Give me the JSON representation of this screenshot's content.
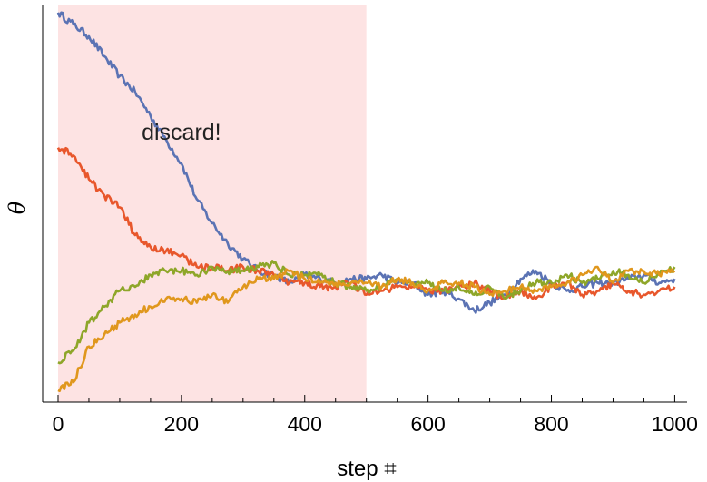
{
  "chart_data": {
    "type": "line",
    "title": "",
    "xlabel": "step ⌗",
    "ylabel": "θ",
    "xlim": [
      -25,
      1020
    ],
    "ylim": [
      0,
      1
    ],
    "xticks": [
      0,
      200,
      400,
      600,
      800,
      1000
    ],
    "x_tick_labels": [
      "0",
      "200",
      "400",
      "600",
      "800",
      "1000"
    ],
    "grid": false,
    "shaded_region": {
      "x_start": 0,
      "x_end": 500,
      "color": "#fde3e3"
    },
    "annotation": {
      "text": "discard!",
      "x": 200,
      "y": 0.66
    },
    "series": [
      {
        "color": "#5b73b4",
        "points": [
          [
            0,
            0.98
          ],
          [
            25,
            0.95
          ],
          [
            50,
            0.92
          ],
          [
            75,
            0.87
          ],
          [
            100,
            0.82
          ],
          [
            125,
            0.78
          ],
          [
            150,
            0.72
          ],
          [
            175,
            0.66
          ],
          [
            200,
            0.6
          ],
          [
            225,
            0.51
          ],
          [
            250,
            0.45
          ],
          [
            275,
            0.4
          ],
          [
            300,
            0.36
          ],
          [
            325,
            0.33
          ],
          [
            350,
            0.32
          ],
          [
            375,
            0.3
          ],
          [
            400,
            0.32
          ],
          [
            425,
            0.31
          ],
          [
            450,
            0.3
          ],
          [
            475,
            0.31
          ],
          [
            500,
            0.31
          ],
          [
            525,
            0.32
          ],
          [
            550,
            0.3
          ],
          [
            575,
            0.3
          ],
          [
            600,
            0.27
          ],
          [
            625,
            0.28
          ],
          [
            650,
            0.26
          ],
          [
            675,
            0.23
          ],
          [
            700,
            0.25
          ],
          [
            725,
            0.27
          ],
          [
            750,
            0.31
          ],
          [
            775,
            0.33
          ],
          [
            800,
            0.3
          ],
          [
            825,
            0.28
          ],
          [
            850,
            0.29
          ],
          [
            875,
            0.3
          ],
          [
            900,
            0.3
          ],
          [
            925,
            0.31
          ],
          [
            950,
            0.32
          ],
          [
            975,
            0.3
          ],
          [
            1000,
            0.31
          ]
        ]
      },
      {
        "color": "#e8572c",
        "points": [
          [
            0,
            0.64
          ],
          [
            25,
            0.62
          ],
          [
            50,
            0.56
          ],
          [
            75,
            0.52
          ],
          [
            100,
            0.49
          ],
          [
            125,
            0.42
          ],
          [
            150,
            0.39
          ],
          [
            175,
            0.38
          ],
          [
            200,
            0.37
          ],
          [
            225,
            0.34
          ],
          [
            250,
            0.34
          ],
          [
            275,
            0.33
          ],
          [
            300,
            0.34
          ],
          [
            325,
            0.33
          ],
          [
            350,
            0.32
          ],
          [
            375,
            0.3
          ],
          [
            400,
            0.3
          ],
          [
            425,
            0.29
          ],
          [
            450,
            0.29
          ],
          [
            475,
            0.3
          ],
          [
            500,
            0.27
          ],
          [
            525,
            0.28
          ],
          [
            550,
            0.29
          ],
          [
            575,
            0.29
          ],
          [
            600,
            0.28
          ],
          [
            625,
            0.28
          ],
          [
            650,
            0.29
          ],
          [
            675,
            0.3
          ],
          [
            700,
            0.28
          ],
          [
            725,
            0.26
          ],
          [
            750,
            0.28
          ],
          [
            775,
            0.26
          ],
          [
            800,
            0.29
          ],
          [
            825,
            0.3
          ],
          [
            850,
            0.27
          ],
          [
            875,
            0.28
          ],
          [
            900,
            0.3
          ],
          [
            925,
            0.28
          ],
          [
            950,
            0.27
          ],
          [
            975,
            0.28
          ],
          [
            1000,
            0.29
          ]
        ]
      },
      {
        "color": "#8ea629",
        "points": [
          [
            0,
            0.1
          ],
          [
            25,
            0.13
          ],
          [
            50,
            0.2
          ],
          [
            75,
            0.24
          ],
          [
            100,
            0.28
          ],
          [
            125,
            0.29
          ],
          [
            150,
            0.32
          ],
          [
            175,
            0.33
          ],
          [
            200,
            0.33
          ],
          [
            225,
            0.32
          ],
          [
            250,
            0.34
          ],
          [
            275,
            0.33
          ],
          [
            300,
            0.33
          ],
          [
            325,
            0.34
          ],
          [
            350,
            0.35
          ],
          [
            375,
            0.32
          ],
          [
            400,
            0.32
          ],
          [
            425,
            0.32
          ],
          [
            450,
            0.3
          ],
          [
            475,
            0.29
          ],
          [
            500,
            0.28
          ],
          [
            525,
            0.29
          ],
          [
            550,
            0.31
          ],
          [
            575,
            0.3
          ],
          [
            600,
            0.3
          ],
          [
            625,
            0.28
          ],
          [
            650,
            0.29
          ],
          [
            675,
            0.27
          ],
          [
            700,
            0.29
          ],
          [
            725,
            0.26
          ],
          [
            750,
            0.28
          ],
          [
            775,
            0.3
          ],
          [
            800,
            0.3
          ],
          [
            825,
            0.32
          ],
          [
            850,
            0.3
          ],
          [
            875,
            0.31
          ],
          [
            900,
            0.33
          ],
          [
            925,
            0.32
          ],
          [
            950,
            0.3
          ],
          [
            975,
            0.32
          ],
          [
            1000,
            0.34
          ]
        ]
      },
      {
        "color": "#e0971d",
        "points": [
          [
            0,
            0.03
          ],
          [
            25,
            0.05
          ],
          [
            50,
            0.14
          ],
          [
            75,
            0.17
          ],
          [
            100,
            0.2
          ],
          [
            125,
            0.22
          ],
          [
            150,
            0.24
          ],
          [
            175,
            0.26
          ],
          [
            200,
            0.26
          ],
          [
            225,
            0.25
          ],
          [
            250,
            0.27
          ],
          [
            275,
            0.25
          ],
          [
            300,
            0.29
          ],
          [
            325,
            0.31
          ],
          [
            350,
            0.31
          ],
          [
            375,
            0.33
          ],
          [
            400,
            0.31
          ],
          [
            425,
            0.3
          ],
          [
            450,
            0.3
          ],
          [
            475,
            0.3
          ],
          [
            500,
            0.3
          ],
          [
            525,
            0.29
          ],
          [
            550,
            0.31
          ],
          [
            575,
            0.3
          ],
          [
            600,
            0.28
          ],
          [
            625,
            0.3
          ],
          [
            650,
            0.3
          ],
          [
            675,
            0.29
          ],
          [
            700,
            0.27
          ],
          [
            725,
            0.28
          ],
          [
            750,
            0.29
          ],
          [
            775,
            0.28
          ],
          [
            800,
            0.29
          ],
          [
            825,
            0.3
          ],
          [
            850,
            0.32
          ],
          [
            875,
            0.34
          ],
          [
            900,
            0.3
          ],
          [
            925,
            0.33
          ],
          [
            950,
            0.33
          ],
          [
            975,
            0.32
          ],
          [
            1000,
            0.33
          ]
        ]
      }
    ]
  }
}
